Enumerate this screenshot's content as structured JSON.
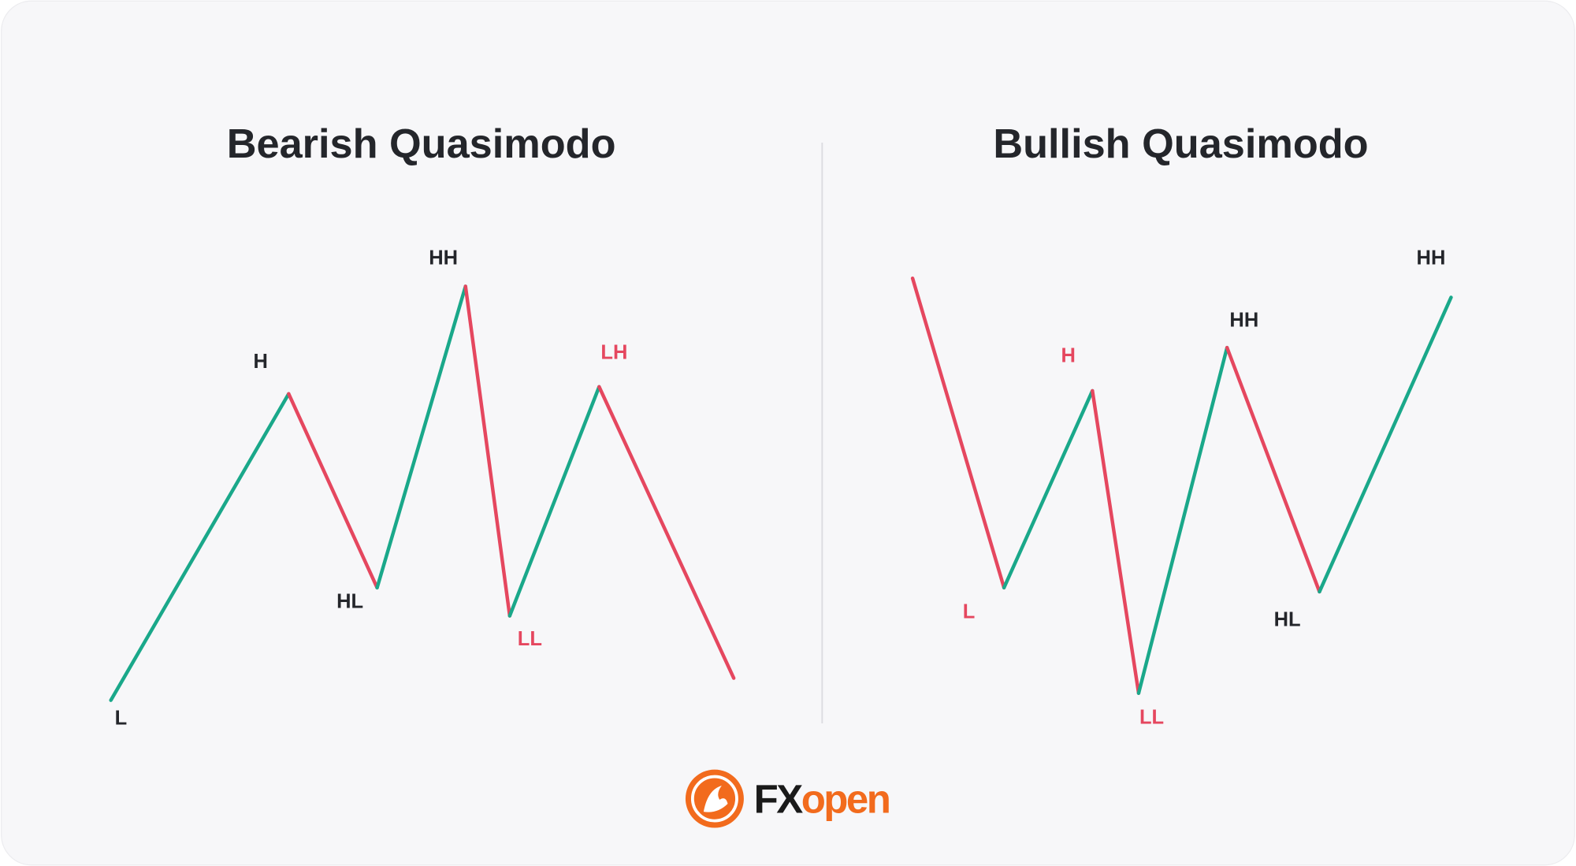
{
  "panels": [
    {
      "title": "Bearish Quasimodo",
      "labels": [
        "L",
        "H",
        "HL",
        "HH",
        "LL",
        "LH"
      ]
    },
    {
      "title": "Bullish Quasimodo",
      "labels": [
        "L",
        "H",
        "LL",
        "HH",
        "HL",
        "HH"
      ]
    }
  ],
  "logo": {
    "part1": "FX",
    "part2": "open"
  }
}
